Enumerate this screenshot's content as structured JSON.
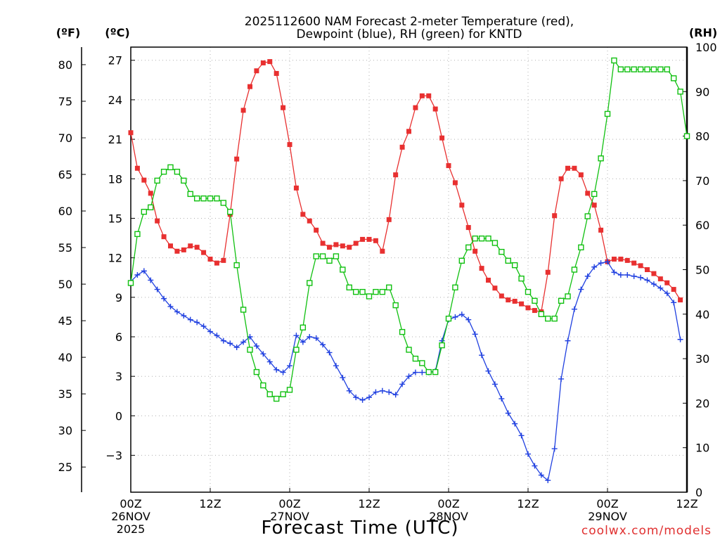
{
  "chart_data": {
    "type": "line",
    "title_lines": [
      "2025112600 NAM Forecast 2-meter Temperature (red),",
      "Dewpoint (blue), RH (green) for KNTD"
    ],
    "xlabel": "Forecast Time (UTC)",
    "credit": "coolwx.com/models",
    "units": {
      "fahrenheit": "(ºF)",
      "celsius": "(ºC)",
      "rh": "(RH)"
    },
    "x_range_hours": [
      0,
      84
    ],
    "x_ticks": [
      {
        "hour": 0,
        "lines": [
          "00Z",
          "26NOV",
          "2025"
        ]
      },
      {
        "hour": 12,
        "lines": [
          "12Z"
        ]
      },
      {
        "hour": 24,
        "lines": [
          "00Z",
          "27NOV"
        ]
      },
      {
        "hour": 36,
        "lines": [
          "12Z"
        ]
      },
      {
        "hour": 48,
        "lines": [
          "00Z",
          "28NOV"
        ]
      },
      {
        "hour": 60,
        "lines": [
          "12Z"
        ]
      },
      {
        "hour": 72,
        "lines": [
          "00Z",
          "29NOV"
        ]
      },
      {
        "hour": 84,
        "lines": [
          "12Z"
        ]
      }
    ],
    "celsius_axis": {
      "range": [
        -5.8,
        28.0
      ],
      "ticks": [
        27,
        24,
        21,
        18,
        15,
        12,
        9,
        6,
        3,
        0,
        -3
      ]
    },
    "fahrenheit_axis": {
      "ticks": [
        80,
        75,
        70,
        65,
        60,
        55,
        50,
        45,
        40,
        35,
        30,
        25
      ]
    },
    "rh_axis": {
      "range": [
        0,
        100
      ],
      "ticks": [
        100,
        90,
        80,
        70,
        60,
        50,
        40,
        30,
        20,
        10,
        0
      ]
    },
    "grid": true,
    "series": [
      {
        "name": "Temperature",
        "axis": "celsius",
        "color": "#e83030",
        "marker": "filled-square",
        "values": [
          21.5,
          18.8,
          17.9,
          16.9,
          14.8,
          13.6,
          12.9,
          12.5,
          12.6,
          12.9,
          12.8,
          12.4,
          11.9,
          11.6,
          11.8,
          15.3,
          19.5,
          23.2,
          25.0,
          26.2,
          26.8,
          26.9,
          26.0,
          23.4,
          20.6,
          17.3,
          15.3,
          14.8,
          14.1,
          13.1,
          12.8,
          13.0,
          12.9,
          12.8,
          13.1,
          13.4,
          13.4,
          13.3,
          12.5,
          14.9,
          18.3,
          20.4,
          21.6,
          23.4,
          24.3,
          24.3,
          23.3,
          21.1,
          19.0,
          17.7,
          16.0,
          14.3,
          12.5,
          11.2,
          10.3,
          9.7,
          9.1,
          8.8,
          8.7,
          8.5,
          8.2,
          8.0,
          7.9,
          10.9,
          15.2,
          18.0,
          18.8,
          18.8,
          18.3,
          16.9,
          16.0,
          14.1,
          11.7,
          11.9,
          11.9,
          11.8,
          11.6,
          11.4,
          11.1,
          10.8,
          10.4,
          10.1,
          9.6,
          8.8
        ]
      },
      {
        "name": "Dewpoint",
        "axis": "celsius",
        "color": "#2040e0",
        "marker": "plus",
        "values": [
          10.2,
          10.7,
          11.0,
          10.3,
          9.6,
          8.9,
          8.3,
          7.9,
          7.6,
          7.3,
          7.1,
          6.8,
          6.4,
          6.1,
          5.7,
          5.5,
          5.2,
          5.6,
          6.0,
          5.3,
          4.7,
          4.1,
          3.5,
          3.3,
          3.8,
          6.1,
          5.6,
          6.0,
          5.9,
          5.4,
          4.8,
          3.8,
          2.9,
          1.9,
          1.4,
          1.2,
          1.4,
          1.8,
          1.9,
          1.8,
          1.6,
          2.4,
          3.0,
          3.3,
          3.3,
          3.3,
          3.4,
          5.7,
          7.3,
          7.5,
          7.7,
          7.3,
          6.2,
          4.6,
          3.4,
          2.4,
          1.3,
          0.2,
          -0.6,
          -1.5,
          -2.9,
          -3.8,
          -4.5,
          -4.9,
          -2.5,
          2.8,
          5.7,
          8.1,
          9.6,
          10.6,
          11.3,
          11.6,
          11.7,
          10.9,
          10.7,
          10.7,
          10.6,
          10.5,
          10.3,
          10.0,
          9.7,
          9.3,
          8.6,
          5.8
        ]
      },
      {
        "name": "RH",
        "axis": "rh",
        "color": "#10c010",
        "marker": "open-square",
        "values": [
          47,
          58,
          63,
          64,
          70,
          72,
          73,
          72,
          70,
          67,
          66,
          66,
          66,
          66,
          65,
          63,
          51,
          41,
          32,
          27,
          24,
          22,
          21,
          22,
          23,
          32,
          37,
          47,
          53,
          53,
          52,
          53,
          50,
          46,
          45,
          45,
          44,
          45,
          45,
          46,
          42,
          36,
          32,
          30,
          29,
          27,
          27,
          33,
          39,
          46,
          52,
          55,
          57,
          57,
          57,
          56,
          54,
          52,
          51,
          48,
          45,
          43,
          40,
          39,
          39,
          43,
          44,
          50,
          55,
          62,
          67,
          75,
          85,
          97,
          95,
          95,
          95,
          95,
          95,
          95,
          95,
          95,
          93,
          90,
          80
        ]
      }
    ]
  }
}
